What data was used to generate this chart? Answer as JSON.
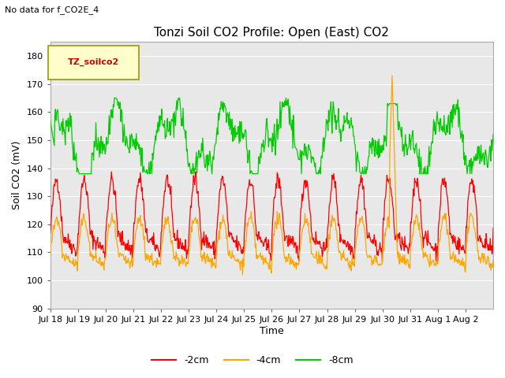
{
  "title": "Tonzi Soil CO2 Profile: Open (East) CO2",
  "subtitle": "No data for f_CO2E_4",
  "ylabel": "Soil CO2 (mV)",
  "xlabel": "Time",
  "ylim": [
    90,
    185
  ],
  "yticks": [
    90,
    100,
    110,
    120,
    130,
    140,
    150,
    160,
    170,
    180
  ],
  "legend_label": "TZ_soilco2",
  "line_labels": [
    "-2cm",
    "-4cm",
    "-8cm"
  ],
  "line_colors": [
    "#FF0000",
    "#FFA500",
    "#00CC00"
  ],
  "background_color": "#FFFFFF",
  "plot_bg_color": "#E8E8E8",
  "x_tick_labels": [
    "Jul 18",
    "Jul 19",
    "Jul 20",
    "Jul 21",
    "Jul 22",
    "Jul 23",
    "Jul 24",
    "Jul 25",
    "Jul 26",
    "Jul 27",
    "Jul 28",
    "Jul 29",
    "Jul 30",
    "Jul 31",
    "Aug 1",
    "Aug 2"
  ],
  "n_days": 16,
  "pts_per_day": 48,
  "seed": 42,
  "red_base": 116,
  "red_amp": 20,
  "red_min": 97,
  "red_max": 142,
  "orange_base": 109,
  "orange_amp": 13,
  "orange_min": 94,
  "orange_max": 127,
  "green_base": 150,
  "green_amp": 9,
  "green_min": 138,
  "green_max": 165,
  "orange_spike_day": 12.35,
  "orange_spike_val": 173,
  "linewidth": 0.9
}
